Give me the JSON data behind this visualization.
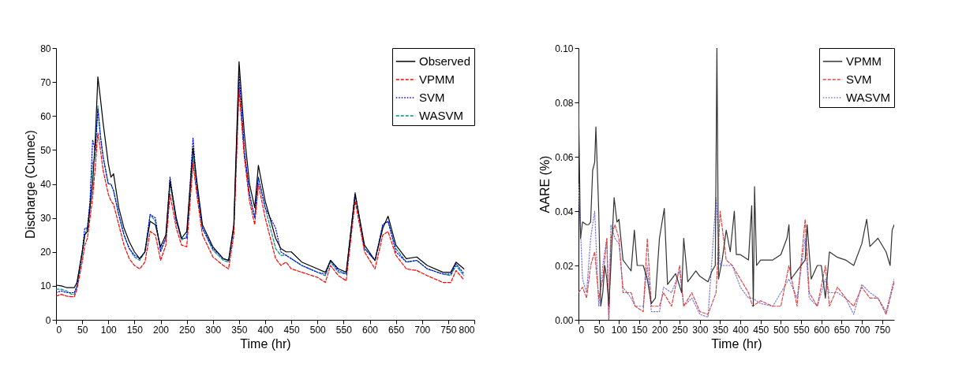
{
  "chart_data": [
    {
      "type": "line",
      "xlabel": "Time (hr)",
      "ylabel": "Discharge (Cumec)",
      "xlim": [
        0,
        800
      ],
      "ylim": [
        0,
        80
      ],
      "xticks": [
        0,
        50,
        100,
        150,
        200,
        250,
        300,
        350,
        400,
        450,
        500,
        550,
        600,
        650,
        700,
        750,
        800
      ],
      "yticks": [
        0,
        10,
        20,
        30,
        40,
        50,
        60,
        70,
        80
      ],
      "grid": false,
      "legend": "top right",
      "marker": "none",
      "x": [
        0,
        10,
        20,
        30,
        35,
        40,
        50,
        55,
        60,
        65,
        70,
        75,
        80,
        85,
        90,
        100,
        105,
        110,
        120,
        130,
        140,
        150,
        160,
        170,
        180,
        190,
        200,
        210,
        218,
        230,
        240,
        250,
        262,
        270,
        280,
        300,
        320,
        330,
        340,
        350,
        360,
        370,
        380,
        387,
        400,
        420,
        430,
        440,
        450,
        470,
        500,
        515,
        525,
        540,
        555,
        572,
        590,
        610,
        625,
        635,
        650,
        670,
        690,
        710,
        740,
        755,
        765,
        780
      ],
      "series": [
        {
          "name": "Observed",
          "color": "#000000",
          "line_style": "solid",
          "values": [
            10.2,
            10,
            9.5,
            9.5,
            9.5,
            11,
            20,
            25,
            26,
            33,
            40,
            53,
            71.5,
            65,
            58,
            46,
            42,
            43,
            33,
            27,
            23,
            20,
            18,
            20,
            29,
            28,
            21.5,
            25,
            41,
            30,
            24,
            26,
            50.5,
            40,
            28,
            21.5,
            18,
            17.5,
            28,
            76,
            55,
            40,
            33,
            45.5,
            35,
            24,
            21,
            20,
            20,
            17,
            15,
            14,
            17.5,
            15,
            14,
            37,
            22,
            17.5,
            27,
            30.5,
            22,
            18,
            18.5,
            16,
            14,
            14,
            17,
            15
          ]
        },
        {
          "name": "VPMM",
          "color": "#ff0000",
          "line_style": "dashed",
          "values": [
            7,
            7.5,
            7,
            6.8,
            6.8,
            9,
            17,
            22,
            24,
            30,
            36,
            45,
            55,
            50,
            44,
            37,
            35,
            34,
            28,
            22,
            18,
            16,
            15,
            17,
            26,
            25,
            17.5,
            22,
            37,
            27,
            22,
            21.5,
            46,
            36,
            25,
            18.5,
            16,
            15,
            25,
            68,
            48,
            35,
            28,
            40,
            30,
            18,
            16,
            17,
            15,
            14,
            12.5,
            11,
            16,
            13,
            11.5,
            35,
            20,
            15,
            25,
            26,
            19,
            15,
            14.5,
            13,
            11,
            11,
            14.5,
            11.8
          ]
        },
        {
          "name": "SVM",
          "color": "#0000ff",
          "line_style": "dotted",
          "values": [
            8,
            8.5,
            8,
            8,
            8,
            10,
            20,
            27,
            27,
            35,
            53,
            50,
            62,
            54,
            48,
            40,
            40,
            38,
            31,
            25,
            21,
            19,
            18,
            20,
            31,
            30,
            20,
            24,
            42,
            29,
            24,
            24,
            53.5,
            38,
            27,
            21,
            18,
            17.5,
            27,
            73,
            50,
            37,
            30,
            42,
            33,
            27,
            20,
            19,
            18,
            16,
            14,
            13.5,
            17.5,
            14.5,
            13.5,
            37.5,
            21,
            17.5,
            28,
            29,
            20,
            17,
            17.5,
            15,
            13.5,
            13.5,
            16.5,
            13.6
          ]
        },
        {
          "name": "WASVM",
          "color": "#008b8b",
          "line_style": "dashed",
          "values": [
            9,
            9,
            8.5,
            7.5,
            7.5,
            10,
            19,
            25,
            27,
            34,
            46,
            48,
            63,
            54,
            48,
            40,
            40,
            38,
            31,
            25,
            21,
            18.5,
            17.5,
            20,
            31,
            29,
            20.5,
            24,
            40,
            29,
            23.5,
            24.5,
            48,
            38,
            27,
            20.5,
            17.5,
            17,
            27,
            70,
            50,
            37,
            30,
            42,
            33,
            21,
            19,
            19,
            18,
            16,
            14,
            13,
            17,
            14,
            13.5,
            37,
            21,
            17.5,
            28,
            29,
            21,
            17,
            17.5,
            15,
            13.5,
            13,
            16,
            13
          ]
        }
      ]
    },
    {
      "type": "line",
      "xlabel": "Time (hr)",
      "ylabel": "AARE (%)",
      "xlim": [
        0,
        780
      ],
      "ylim": [
        0,
        0.1
      ],
      "xticks": [
        0,
        50,
        100,
        150,
        200,
        250,
        300,
        350,
        400,
        450,
        500,
        550,
        600,
        650,
        700,
        750
      ],
      "yticks": [
        {
          "value": 0,
          "label": "0.00"
        },
        {
          "value": 0.02,
          "label": "0.02"
        },
        {
          "value": 0.04,
          "label": "0.04"
        },
        {
          "value": 0.06,
          "label": "0.06"
        },
        {
          "value": 0.08,
          "label": "0.08"
        },
        {
          "value": 0.1,
          "label": "0.10"
        }
      ],
      "grid": false,
      "legend": "top right",
      "marker": "none",
      "series": [
        {
          "name": "VPMM",
          "color": "#333333",
          "line_style": "solid",
          "x": [
            0,
            2,
            5,
            10,
            20,
            25,
            30,
            35,
            40,
            43,
            50,
            55,
            60,
            65,
            70,
            75,
            80,
            88,
            95,
            100,
            110,
            120,
            130,
            138,
            145,
            160,
            170,
            180,
            190,
            200,
            212,
            220,
            240,
            255,
            260,
            270,
            290,
            300,
            320,
            330,
            338,
            342,
            346,
            355,
            365,
            375,
            385,
            390,
            400,
            420,
            428,
            432,
            435,
            440,
            450,
            480,
            500,
            515,
            520,
            525,
            540,
            560,
            565,
            575,
            590,
            600,
            610,
            620,
            640,
            660,
            680,
            700,
            712,
            720,
            740,
            760,
            770,
            775,
            780
          ],
          "values": [
            0.08,
            0.06,
            0.03,
            0.036,
            0.035,
            0.035,
            0.036,
            0.055,
            0.058,
            0.071,
            0.04,
            0.005,
            0.01,
            0.02,
            0.015,
            0.005,
            0.02,
            0.045,
            0.036,
            0.037,
            0.022,
            0.02,
            0.018,
            0.033,
            0.02,
            0.02,
            0.015,
            0.006,
            0.008,
            0.03,
            0.041,
            0.013,
            0.017,
            0.01,
            0.03,
            0.014,
            0.018,
            0.016,
            0.014,
            0.018,
            0.02,
            0.1,
            0.015,
            0.022,
            0.033,
            0.025,
            0.04,
            0.024,
            0.024,
            0.022,
            0.042,
            0.005,
            0.049,
            0.02,
            0.022,
            0.022,
            0.024,
            0.03,
            0.035,
            0.015,
            0.018,
            0.022,
            0.035,
            0.015,
            0.02,
            0.02,
            0.008,
            0.025,
            0.023,
            0.022,
            0.02,
            0.028,
            0.037,
            0.027,
            0.03,
            0.025,
            0.02,
            0.033,
            0.035
          ]
        },
        {
          "name": "SVM",
          "color": "#e04848",
          "line_style": "dashed",
          "x": [
            0,
            10,
            20,
            30,
            40,
            50,
            60,
            70,
            75,
            80,
            90,
            100,
            110,
            130,
            140,
            160,
            170,
            180,
            200,
            210,
            230,
            250,
            260,
            280,
            300,
            320,
            340,
            350,
            365,
            380,
            400,
            420,
            430,
            450,
            480,
            500,
            520,
            540,
            560,
            570,
            590,
            610,
            620,
            640,
            660,
            680,
            700,
            720,
            740,
            760,
            780
          ],
          "values": [
            0.01,
            0.012,
            0.008,
            0.02,
            0.025,
            0.008,
            0.015,
            0.03,
            0.0,
            0.03,
            0.035,
            0.03,
            0.01,
            0.01,
            0.005,
            0.003,
            0.03,
            0.005,
            0.005,
            0.01,
            0.005,
            0.02,
            0.005,
            0.01,
            0.003,
            0.002,
            0.01,
            0.04,
            0.022,
            0.02,
            0.015,
            0.01,
            0.005,
            0.007,
            0.005,
            0.005,
            0.02,
            0.005,
            0.037,
            0.01,
            0.005,
            0.02,
            0.005,
            0.012,
            0.008,
            0.005,
            0.012,
            0.008,
            0.008,
            0.002,
            0.014
          ]
        },
        {
          "name": "WASVM",
          "color": "#7878e0",
          "line_style": "dotted",
          "x": [
            0,
            10,
            20,
            30,
            40,
            50,
            60,
            70,
            75,
            80,
            90,
            100,
            110,
            130,
            140,
            160,
            170,
            180,
            200,
            210,
            230,
            250,
            260,
            280,
            300,
            320,
            340,
            350,
            365,
            380,
            400,
            420,
            430,
            450,
            480,
            500,
            520,
            540,
            560,
            570,
            590,
            610,
            620,
            640,
            660,
            680,
            700,
            720,
            740,
            760,
            780
          ],
          "values": [
            0.05,
            0.015,
            0.01,
            0.03,
            0.04,
            0.005,
            0.02,
            0.03,
            0.0,
            0.035,
            0.03,
            0.028,
            0.012,
            0.008,
            0.005,
            0.005,
            0.02,
            0.003,
            0.003,
            0.012,
            0.01,
            0.018,
            0.005,
            0.008,
            0.002,
            0.001,
            0.045,
            0.02,
            0.02,
            0.02,
            0.012,
            0.008,
            0.008,
            0.006,
            0.005,
            0.01,
            0.015,
            0.008,
            0.03,
            0.008,
            0.005,
            0.015,
            0.01,
            0.01,
            0.008,
            0.002,
            0.013,
            0.01,
            0.008,
            0.003,
            0.015
          ]
        }
      ]
    }
  ]
}
